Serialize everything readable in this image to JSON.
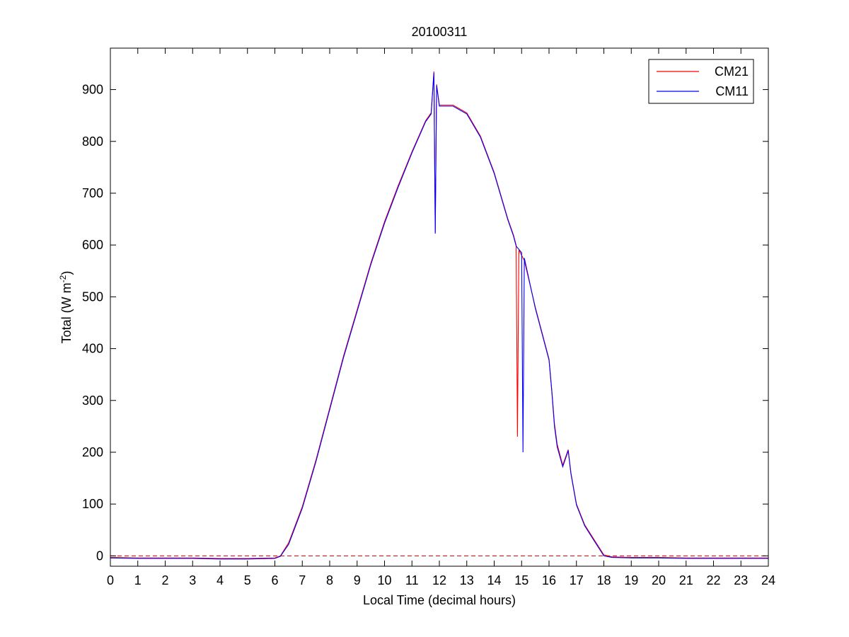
{
  "chart_data": {
    "type": "line",
    "title": "20100311",
    "xlabel": "Local Time (decimal hours)",
    "ylabel_main": "Total (W m",
    "ylabel_sup": "-2",
    "ylabel_close": ")",
    "xlim": [
      0,
      24
    ],
    "ylim": [
      -20,
      980
    ],
    "xticks": [
      0,
      1,
      2,
      3,
      4,
      5,
      6,
      7,
      8,
      9,
      10,
      11,
      12,
      13,
      14,
      15,
      16,
      17,
      18,
      19,
      20,
      21,
      22,
      23,
      24
    ],
    "yticks": [
      0,
      100,
      200,
      300,
      400,
      500,
      600,
      700,
      800,
      900
    ],
    "grid": false,
    "legend_position": "top-right",
    "reference_line": {
      "y": 0,
      "style": "dashed",
      "color": "#cc0000"
    },
    "series": [
      {
        "name": "CM21",
        "color": "#ff0000",
        "points": [
          [
            0,
            -3
          ],
          [
            1,
            -4
          ],
          [
            2,
            -4
          ],
          [
            3,
            -4
          ],
          [
            4,
            -5
          ],
          [
            5,
            -5
          ],
          [
            6,
            -4
          ],
          [
            6.2,
            0
          ],
          [
            6.5,
            25
          ],
          [
            7,
            95
          ],
          [
            7.5,
            185
          ],
          [
            8,
            285
          ],
          [
            8.5,
            385
          ],
          [
            9,
            475
          ],
          [
            9.5,
            565
          ],
          [
            10,
            645
          ],
          [
            10.5,
            715
          ],
          [
            11,
            780
          ],
          [
            11.5,
            840
          ],
          [
            11.7,
            855
          ],
          [
            11.8,
            935
          ],
          [
            11.85,
            625
          ],
          [
            11.9,
            910
          ],
          [
            12,
            870
          ],
          [
            12.5,
            870
          ],
          [
            13,
            855
          ],
          [
            13.5,
            810
          ],
          [
            14,
            740
          ],
          [
            14.5,
            650
          ],
          [
            14.7,
            620
          ],
          [
            14.8,
            600
          ],
          [
            14.85,
            230
          ],
          [
            14.9,
            590
          ],
          [
            15,
            580
          ],
          [
            15.1,
            570
          ],
          [
            15.5,
            480
          ],
          [
            16,
            380
          ],
          [
            16.1,
            320
          ],
          [
            16.2,
            255
          ],
          [
            16.3,
            215
          ],
          [
            16.5,
            175
          ],
          [
            16.7,
            205
          ],
          [
            16.8,
            160
          ],
          [
            17,
            100
          ],
          [
            17.3,
            60
          ],
          [
            17.6,
            35
          ],
          [
            18,
            2
          ],
          [
            18.3,
            -2
          ],
          [
            19,
            -3
          ],
          [
            20,
            -3
          ],
          [
            21,
            -4
          ],
          [
            22,
            -4
          ],
          [
            23,
            -4
          ],
          [
            24,
            -4
          ]
        ]
      },
      {
        "name": "CM11",
        "color": "#0000ff",
        "points": [
          [
            0,
            -4
          ],
          [
            1,
            -5
          ],
          [
            2,
            -5
          ],
          [
            3,
            -5
          ],
          [
            4,
            -6
          ],
          [
            5,
            -6
          ],
          [
            6,
            -5
          ],
          [
            6.2,
            -1
          ],
          [
            6.5,
            22
          ],
          [
            7,
            92
          ],
          [
            7.5,
            182
          ],
          [
            8,
            282
          ],
          [
            8.5,
            382
          ],
          [
            9,
            472
          ],
          [
            9.5,
            562
          ],
          [
            10,
            642
          ],
          [
            10.5,
            712
          ],
          [
            11,
            778
          ],
          [
            11.5,
            838
          ],
          [
            11.7,
            853
          ],
          [
            11.8,
            932
          ],
          [
            11.85,
            622
          ],
          [
            11.9,
            908
          ],
          [
            12,
            868
          ],
          [
            12.5,
            868
          ],
          [
            13,
            853
          ],
          [
            13.5,
            808
          ],
          [
            14,
            738
          ],
          [
            14.5,
            648
          ],
          [
            14.7,
            618
          ],
          [
            14.8,
            598
          ],
          [
            15,
            585
          ],
          [
            15.05,
            200
          ],
          [
            15.1,
            575
          ],
          [
            15.5,
            478
          ],
          [
            16,
            378
          ],
          [
            16.1,
            318
          ],
          [
            16.2,
            250
          ],
          [
            16.3,
            210
          ],
          [
            16.5,
            172
          ],
          [
            16.7,
            203
          ],
          [
            16.8,
            158
          ],
          [
            17,
            98
          ],
          [
            17.3,
            58
          ],
          [
            17.6,
            33
          ],
          [
            18,
            0
          ],
          [
            18.3,
            -3
          ],
          [
            19,
            -4
          ],
          [
            20,
            -4
          ],
          [
            21,
            -5
          ],
          [
            22,
            -5
          ],
          [
            23,
            -5
          ],
          [
            24,
            -5
          ]
        ]
      }
    ]
  }
}
